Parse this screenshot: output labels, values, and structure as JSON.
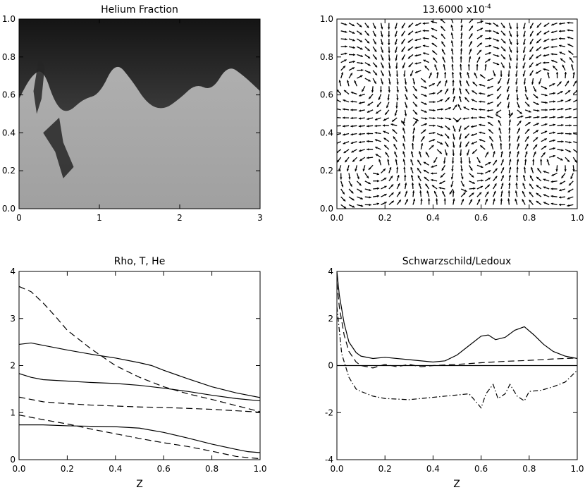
{
  "chart_data": [
    {
      "type": "heatmap",
      "title": "Helium Fraction",
      "xlim": [
        0,
        3
      ],
      "ylim": [
        0,
        1
      ],
      "xticks": [
        "0",
        "1",
        "2",
        "3"
      ],
      "yticks": [
        "0.0",
        "0.2",
        "0.4",
        "0.6",
        "0.8",
        "1.0"
      ],
      "colormap": "grayscale",
      "colors": {
        "dark": "#1a1a1a",
        "light": "#a8a8a8"
      },
      "interface": {
        "x": [
          0,
          0.15,
          0.3,
          0.45,
          0.6,
          0.8,
          1.0,
          1.2,
          1.4,
          1.6,
          1.8,
          2.0,
          2.2,
          2.4,
          2.6,
          2.8,
          3.0
        ],
        "y": [
          0.58,
          0.7,
          0.74,
          0.55,
          0.5,
          0.58,
          0.6,
          0.78,
          0.68,
          0.55,
          0.52,
          0.58,
          0.66,
          0.62,
          0.76,
          0.7,
          0.62
        ]
      },
      "dark_intrusions": [
        {
          "x": [
            0.3,
            0.5,
            0.55,
            0.68,
            0.55,
            0.45,
            0.3
          ],
          "y": [
            0.4,
            0.48,
            0.35,
            0.22,
            0.16,
            0.3,
            0.4
          ]
        },
        {
          "x": [
            0.18,
            0.25,
            0.32,
            0.28,
            0.22,
            0.18
          ],
          "y": [
            0.62,
            0.8,
            0.75,
            0.58,
            0.5,
            0.62
          ]
        }
      ]
    },
    {
      "type": "vector-field",
      "title": "13.6000 x10",
      "title_superscript": "-4",
      "xlim": [
        0,
        1
      ],
      "ylim": [
        0,
        1
      ],
      "xticks": [
        "0.0",
        "0.2",
        "0.4",
        "0.6",
        "0.8",
        "1.0"
      ],
      "yticks": [
        "0.0",
        "0.2",
        "0.4",
        "0.6",
        "0.8",
        "1.0"
      ],
      "vortices": [
        {
          "x": 0.17,
          "y": 0.23,
          "strength": 1
        },
        {
          "x": 0.4,
          "y": 0.28,
          "strength": -1
        },
        {
          "x": 0.6,
          "y": 0.28,
          "strength": 1
        },
        {
          "x": 0.88,
          "y": 0.24,
          "strength": -1
        },
        {
          "x": 0.12,
          "y": 0.65,
          "strength": -1
        },
        {
          "x": 0.35,
          "y": 0.7,
          "strength": 1
        },
        {
          "x": 0.65,
          "y": 0.72,
          "strength": -1
        },
        {
          "x": 0.85,
          "y": 0.68,
          "strength": 1
        }
      ]
    },
    {
      "type": "line",
      "title": "Rho, T, He",
      "xlabel": "Z",
      "xlim": [
        0,
        1
      ],
      "ylim": [
        0,
        4
      ],
      "xticks": [
        "0.0",
        "0.2",
        "0.4",
        "0.6",
        "0.8",
        "1.0"
      ],
      "yticks": [
        "0",
        "1",
        "2",
        "3",
        "4"
      ],
      "series": [
        {
          "style": "solid",
          "x": [
            0.0,
            0.05,
            0.1,
            0.2,
            0.3,
            0.4,
            0.5,
            0.55,
            0.6,
            0.7,
            0.8,
            0.9,
            1.0
          ],
          "y": [
            2.45,
            2.48,
            2.43,
            2.33,
            2.24,
            2.16,
            2.06,
            2.0,
            1.9,
            1.72,
            1.55,
            1.42,
            1.32
          ]
        },
        {
          "style": "solid",
          "x": [
            0.0,
            0.05,
            0.1,
            0.2,
            0.3,
            0.4,
            0.5,
            0.6,
            0.7,
            0.8,
            0.9,
            1.0
          ],
          "y": [
            1.83,
            1.75,
            1.7,
            1.67,
            1.64,
            1.62,
            1.58,
            1.52,
            1.45,
            1.37,
            1.3,
            1.25
          ]
        },
        {
          "style": "solid",
          "x": [
            0.0,
            0.1,
            0.2,
            0.3,
            0.4,
            0.5,
            0.6,
            0.7,
            0.8,
            0.9,
            0.95,
            1.0
          ],
          "y": [
            0.74,
            0.74,
            0.72,
            0.71,
            0.7,
            0.67,
            0.58,
            0.46,
            0.33,
            0.22,
            0.17,
            0.15
          ]
        },
        {
          "style": "dashed",
          "x": [
            0.0,
            0.05,
            0.1,
            0.15,
            0.2,
            0.3,
            0.4,
            0.5,
            0.6,
            0.7,
            0.8,
            0.9,
            1.0
          ],
          "y": [
            3.68,
            3.57,
            3.33,
            3.05,
            2.75,
            2.35,
            2.0,
            1.75,
            1.55,
            1.4,
            1.28,
            1.15,
            1.02
          ]
        },
        {
          "style": "dashed",
          "x": [
            0.0,
            0.1,
            0.2,
            0.3,
            0.4,
            0.5,
            0.6,
            0.7,
            0.8,
            0.9,
            1.0
          ],
          "y": [
            1.33,
            1.23,
            1.19,
            1.16,
            1.14,
            1.12,
            1.11,
            1.09,
            1.07,
            1.04,
            1.01
          ]
        },
        {
          "style": "dashed",
          "x": [
            0.0,
            0.1,
            0.2,
            0.3,
            0.4,
            0.5,
            0.6,
            0.7,
            0.8,
            0.9,
            1.0
          ],
          "y": [
            0.95,
            0.85,
            0.76,
            0.65,
            0.55,
            0.45,
            0.36,
            0.28,
            0.18,
            0.07,
            0.02
          ]
        }
      ]
    },
    {
      "type": "line",
      "title": "Schwarzschild/Ledoux",
      "xlabel": "Z",
      "xlim": [
        0,
        1
      ],
      "ylim": [
        -4,
        4
      ],
      "xticks": [
        "0.0",
        "0.2",
        "0.4",
        "0.6",
        "0.8",
        "1.0"
      ],
      "yticks": [
        "-4",
        "-2",
        "0",
        "2",
        "4"
      ],
      "zero_line": true,
      "series": [
        {
          "style": "solid",
          "x": [
            0.0,
            0.01,
            0.03,
            0.05,
            0.08,
            0.1,
            0.15,
            0.2,
            0.3,
            0.4,
            0.45,
            0.5,
            0.55,
            0.6,
            0.63,
            0.66,
            0.7,
            0.74,
            0.78,
            0.82,
            0.86,
            0.9,
            0.95,
            1.0
          ],
          "y": [
            4.0,
            3.0,
            1.8,
            1.0,
            0.55,
            0.4,
            0.3,
            0.35,
            0.25,
            0.15,
            0.2,
            0.45,
            0.85,
            1.25,
            1.3,
            1.1,
            1.2,
            1.5,
            1.65,
            1.3,
            0.9,
            0.6,
            0.4,
            0.3
          ]
        },
        {
          "style": "dashed",
          "x": [
            0.0,
            0.01,
            0.03,
            0.05,
            0.08,
            0.1,
            0.15,
            0.2,
            0.25,
            0.3,
            0.35,
            0.4,
            0.5,
            0.6,
            0.7,
            0.8,
            0.9,
            1.0
          ],
          "y": [
            3.5,
            2.5,
            1.3,
            0.6,
            0.15,
            0.0,
            -0.1,
            0.05,
            -0.05,
            0.05,
            -0.05,
            0.0,
            0.05,
            0.12,
            0.18,
            0.22,
            0.28,
            0.32
          ]
        },
        {
          "style": "dashdot",
          "x": [
            0.0,
            0.02,
            0.05,
            0.08,
            0.1,
            0.15,
            0.2,
            0.3,
            0.4,
            0.5,
            0.55,
            0.58,
            0.6,
            0.62,
            0.65,
            0.67,
            0.7,
            0.72,
            0.75,
            0.78,
            0.8,
            0.85,
            0.9,
            0.95,
            1.0
          ],
          "y": [
            2.5,
            0.5,
            -0.5,
            -1.0,
            -1.1,
            -1.3,
            -1.4,
            -1.45,
            -1.35,
            -1.25,
            -1.2,
            -1.55,
            -1.8,
            -1.2,
            -0.8,
            -1.4,
            -1.2,
            -0.8,
            -1.3,
            -1.5,
            -1.1,
            -1.05,
            -0.9,
            -0.7,
            -0.2
          ]
        }
      ]
    }
  ]
}
